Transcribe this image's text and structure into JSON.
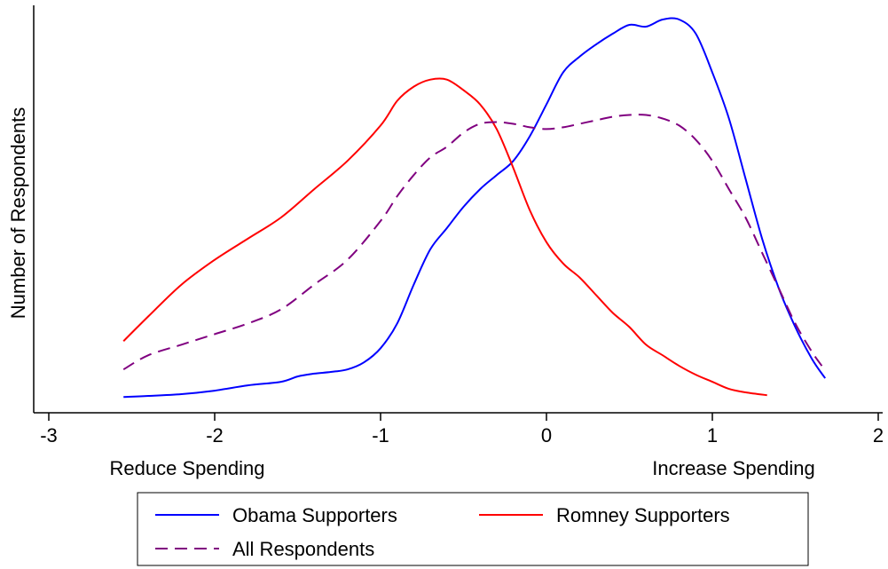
{
  "chart_data": {
    "type": "line",
    "title": "",
    "xlabel": "",
    "ylabel": "Number of Respondents",
    "xlim": [
      -3,
      2
    ],
    "x_ticks": [
      "-3",
      "-2",
      "-1",
      "0",
      "1",
      "2"
    ],
    "x_tick_values": [
      -3,
      -2,
      -1,
      0,
      1,
      2
    ],
    "x_annotations": {
      "left": "Reduce Spending",
      "right": "Increase Spending"
    },
    "y_ticks_shown": false,
    "grid": false,
    "legend_position": "bottom",
    "series": [
      {
        "name": "Obama Supporters",
        "color": "#0000ff",
        "dash": "solid",
        "x": [
          -2.55,
          -2.4,
          -2.2,
          -2.0,
          -1.8,
          -1.6,
          -1.5,
          -1.4,
          -1.3,
          -1.2,
          -1.1,
          -1.0,
          -0.9,
          -0.8,
          -0.7,
          -0.6,
          -0.5,
          -0.4,
          -0.3,
          -0.2,
          -0.1,
          0.0,
          0.1,
          0.2,
          0.3,
          0.4,
          0.5,
          0.6,
          0.7,
          0.8,
          0.9,
          1.0,
          1.1,
          1.2,
          1.3,
          1.4,
          1.5,
          1.6,
          1.68
        ],
        "y": [
          1.2,
          1.5,
          2.0,
          3.0,
          4.5,
          5.5,
          7.0,
          7.8,
          8.3,
          9.0,
          11.0,
          15.0,
          22.0,
          33.0,
          43.0,
          49.0,
          55.0,
          60.0,
          64.0,
          68.0,
          75.0,
          84.0,
          93.0,
          97.5,
          101.0,
          104.0,
          106.5,
          106.0,
          108.0,
          108.0,
          104.0,
          93.0,
          80.0,
          63.0,
          46.0,
          32.0,
          21.0,
          12.0,
          6.5
        ]
      },
      {
        "name": "Romney Supporters",
        "color": "#ff0000",
        "dash": "solid",
        "x": [
          -2.55,
          -2.4,
          -2.2,
          -2.0,
          -1.8,
          -1.6,
          -1.4,
          -1.2,
          -1.0,
          -0.9,
          -0.8,
          -0.7,
          -0.6,
          -0.5,
          -0.4,
          -0.3,
          -0.2,
          -0.1,
          0.0,
          0.1,
          0.2,
          0.3,
          0.4,
          0.5,
          0.6,
          0.7,
          0.8,
          0.9,
          1.0,
          1.1,
          1.2,
          1.33
        ],
        "y": [
          17.0,
          24.0,
          33.0,
          40.0,
          46.0,
          52.0,
          60.0,
          68.0,
          78.0,
          85.0,
          89.0,
          91.0,
          91.0,
          88.0,
          84.0,
          77.0,
          66.0,
          54.0,
          45.0,
          39.0,
          35.0,
          30.0,
          25.0,
          21.0,
          16.0,
          13.0,
          10.0,
          7.5,
          5.5,
          3.5,
          2.5,
          1.7
        ]
      },
      {
        "name": "All Respondents",
        "color": "#800080",
        "dash": "dashed",
        "x": [
          -2.55,
          -2.4,
          -2.2,
          -2.0,
          -1.8,
          -1.6,
          -1.4,
          -1.2,
          -1.0,
          -0.9,
          -0.8,
          -0.7,
          -0.6,
          -0.5,
          -0.4,
          -0.3,
          -0.2,
          -0.1,
          0.0,
          0.1,
          0.2,
          0.3,
          0.4,
          0.5,
          0.6,
          0.7,
          0.8,
          0.9,
          1.0,
          1.1,
          1.2,
          1.3,
          1.4,
          1.5,
          1.6,
          1.66
        ],
        "y": [
          9.0,
          13.0,
          16.0,
          19.0,
          22.0,
          26.0,
          33.0,
          40.0,
          51.0,
          58.0,
          64.0,
          69.0,
          72.0,
          76.0,
          78.5,
          79.0,
          78.5,
          77.5,
          77.0,
          77.5,
          78.5,
          79.5,
          80.5,
          81.0,
          81.0,
          80.0,
          78.0,
          74.0,
          68.0,
          60.0,
          52.0,
          42.0,
          32.0,
          22.0,
          14.0,
          10.0
        ]
      }
    ]
  }
}
